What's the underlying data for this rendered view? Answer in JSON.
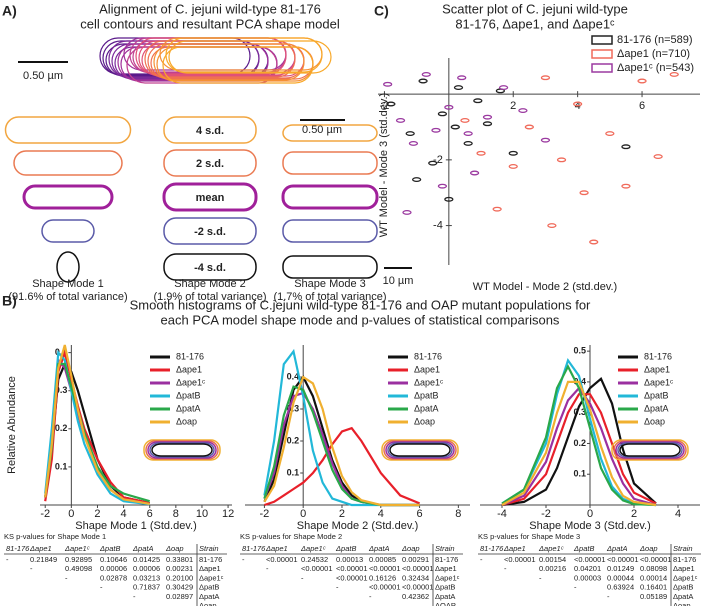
{
  "panel_labels": [
    "A)",
    "B)",
    "C)"
  ],
  "panel_a": {
    "title": [
      "Alignment of C. jejuni wild-type 81-176",
      "cell contours and resultant PCA shape model"
    ],
    "scale_bar": "0.50 µm",
    "rows": [
      "4 s.d.",
      "2 s.d.",
      "mean",
      "-2 s.d.",
      "-4 s.d."
    ],
    "scale_bar_mode3": "0.50 µm",
    "modes": [
      {
        "name": "Shape Mode 1",
        "variance": "(91.6% of total variance)"
      },
      {
        "name": "Shape Mode 2",
        "variance": "(1.9% of total variance)"
      },
      {
        "name": "Shape Mode 3",
        "variance": "(1.7% of total variance)"
      }
    ]
  },
  "panel_b_title": [
    "Smooth histograms of C.jejuni wild-type 81-176 and OAP mutant populations for",
    "each PCA model shape mode and p-values of statistical comparisons"
  ],
  "chart_data": [
    {
      "type": "scatter",
      "title": [
        "Scatter plot of C. jejuni wild-type",
        "81-176, Δape1, and Δape1ᶜ"
      ],
      "x_label": "WT Model - Mode 2 (std.dev.)",
      "y_label": "WT Model - Mode 3 (std.dev.)",
      "scale_bar": "10 µm",
      "legend": "upper right",
      "xlim": [
        -2.2,
        7.8
      ],
      "ylim": [
        -5.2,
        1.1
      ],
      "xticks": [
        -2,
        2,
        4,
        6
      ],
      "yticks": [
        -2,
        -4
      ],
      "series": [
        {
          "name": "81-176 (n=589)",
          "color": "#222222",
          "x": [
            -1.8,
            -1.2,
            -0.8,
            -0.5,
            -0.2,
            0,
            0.3,
            0.6,
            0.9,
            1.2,
            1.6,
            2.0,
            -1.0,
            0.2,
            5.5
          ],
          "y": [
            -0.3,
            -1.2,
            0.4,
            -2.1,
            -0.6,
            -3.2,
            0.2,
            -1.5,
            -0.2,
            -0.9,
            0.1,
            -1.8,
            -2.6,
            -1.0,
            -1.6
          ]
        },
        {
          "name": "Δape1 (n=710)",
          "color": "#f06a5a",
          "x": [
            0.5,
            1.5,
            2.5,
            3,
            3.5,
            4,
            4.5,
            5,
            5.5,
            6,
            6.5,
            2,
            3.2,
            4.2,
            1,
            7
          ],
          "y": [
            -0.8,
            -3.5,
            -1,
            0.5,
            -2,
            -0.3,
            -4.5,
            -1.2,
            -2.8,
            0.4,
            -1.9,
            -2.2,
            -4,
            -3,
            -1.8,
            0.6
          ]
        },
        {
          "name": "Δape1ᶜ (n=543)",
          "color": "#9b3aa0",
          "x": [
            -1.9,
            -1.5,
            -1.1,
            -0.7,
            -0.4,
            0,
            0.4,
            0.8,
            1.2,
            1.7,
            -0.2,
            0.6,
            2.3,
            -1.3,
            3.0
          ],
          "y": [
            0.3,
            -0.8,
            -1.5,
            0.6,
            -1.1,
            -0.4,
            0.5,
            -2.4,
            -0.7,
            0.2,
            -2.8,
            -1.2,
            -0.5,
            -3.6,
            -1.4
          ]
        }
      ]
    },
    {
      "type": "line",
      "x_label": "Shape Mode 1 (Std.dev.)",
      "y_label": "Relative Abundance",
      "xlim": [
        -2.4,
        12.3
      ],
      "ylim": [
        0,
        0.42
      ],
      "xticks": [
        -2,
        0,
        2,
        4,
        6,
        8,
        10,
        12
      ],
      "yticks": [
        0.1,
        0.2,
        0.3,
        0.4
      ],
      "x": [
        -2,
        -1.5,
        -1,
        -0.5,
        0,
        0.5,
        1,
        2,
        3,
        4,
        6
      ],
      "series": [
        {
          "name": "81-176",
          "color": "#111111",
          "values": [
            0.02,
            0.15,
            0.33,
            0.37,
            0.35,
            0.3,
            0.24,
            0.12,
            0.05,
            0.02,
            0.005
          ]
        },
        {
          "name": "Δape1",
          "color": "#e8202a",
          "values": [
            0.01,
            0.12,
            0.35,
            0.4,
            0.33,
            0.26,
            0.2,
            0.12,
            0.06,
            0.02,
            0.005
          ]
        },
        {
          "name": "Δape1ᶜ",
          "color": "#9b30a0",
          "values": [
            0.02,
            0.18,
            0.38,
            0.36,
            0.3,
            0.24,
            0.18,
            0.1,
            0.04,
            0.015,
            0.003
          ]
        },
        {
          "name": "ΔpatB",
          "color": "#22b8d8",
          "values": [
            0.03,
            0.2,
            0.4,
            0.38,
            0.3,
            0.22,
            0.16,
            0.08,
            0.03,
            0.01,
            0.002
          ]
        },
        {
          "name": "ΔpatA",
          "color": "#2aa84a",
          "values": [
            0.02,
            0.15,
            0.37,
            0.37,
            0.31,
            0.25,
            0.19,
            0.1,
            0.05,
            0.03,
            0.01
          ]
        },
        {
          "name": "Δoap",
          "color": "#f0b030",
          "values": [
            0.02,
            0.16,
            0.36,
            0.42,
            0.34,
            0.25,
            0.18,
            0.09,
            0.04,
            0.015,
            0.003
          ]
        }
      ]
    },
    {
      "type": "line",
      "x_label": "Shape Mode 2 (Std.dev.)",
      "xlim": [
        -3,
        8.6
      ],
      "ylim": [
        0,
        0.5
      ],
      "xticks": [
        -2,
        0,
        2,
        4,
        6,
        8
      ],
      "yticks": [
        0.1,
        0.2,
        0.3,
        0.4
      ],
      "x": [
        -2,
        -1.5,
        -1,
        -0.5,
        0,
        0.5,
        1,
        1.5,
        2,
        2.5,
        3,
        4,
        5,
        6
      ],
      "series": [
        {
          "name": "81-176",
          "color": "#111111",
          "values": [
            0.01,
            0.08,
            0.22,
            0.36,
            0.4,
            0.34,
            0.24,
            0.14,
            0.07,
            0.03,
            0.01,
            0,
            0,
            0
          ]
        },
        {
          "name": "Δape1",
          "color": "#e8202a",
          "values": [
            0,
            0.01,
            0.03,
            0.05,
            0.07,
            0.1,
            0.14,
            0.19,
            0.23,
            0.24,
            0.2,
            0.1,
            0.03,
            0.005
          ]
        },
        {
          "name": "Δape1ᶜ",
          "color": "#9b30a0",
          "values": [
            0.02,
            0.1,
            0.25,
            0.34,
            0.35,
            0.3,
            0.22,
            0.13,
            0.06,
            0.02,
            0.01,
            0,
            0,
            0
          ]
        },
        {
          "name": "ΔpatB",
          "color": "#22b8d8",
          "values": [
            0.03,
            0.2,
            0.44,
            0.48,
            0.34,
            0.17,
            0.07,
            0.02,
            0.01,
            0,
            0,
            0,
            0,
            0
          ]
        },
        {
          "name": "ΔpatA",
          "color": "#2aa84a",
          "values": [
            0.02,
            0.12,
            0.28,
            0.37,
            0.36,
            0.29,
            0.2,
            0.11,
            0.05,
            0.02,
            0.01,
            0,
            0,
            0
          ]
        },
        {
          "name": "Δoap",
          "color": "#f0b030",
          "values": [
            0.01,
            0.06,
            0.18,
            0.32,
            0.4,
            0.38,
            0.3,
            0.18,
            0.09,
            0.04,
            0.015,
            0,
            0,
            0
          ]
        }
      ]
    },
    {
      "type": "line",
      "x_label": "Shape Mode 3 (Std.dev.)",
      "xlim": [
        -5,
        5
      ],
      "ylim": [
        0,
        0.52
      ],
      "xticks": [
        -4,
        -2,
        0,
        2,
        4
      ],
      "yticks": [
        0.1,
        0.2,
        0.3,
        0.4,
        0.5
      ],
      "x": [
        -4,
        -3,
        -2,
        -1.5,
        -1,
        -0.5,
        0,
        0.5,
        1,
        1.5,
        2,
        3
      ],
      "series": [
        {
          "name": "81-176",
          "color": "#111111",
          "values": [
            0,
            0.01,
            0.05,
            0.12,
            0.22,
            0.32,
            0.38,
            0.41,
            0.33,
            0.18,
            0.07,
            0.005
          ]
        },
        {
          "name": "Δape1",
          "color": "#e8202a",
          "values": [
            0,
            0.02,
            0.1,
            0.2,
            0.3,
            0.36,
            0.36,
            0.3,
            0.2,
            0.1,
            0.04,
            0.005
          ]
        },
        {
          "name": "Δape1ᶜ",
          "color": "#9b30a0",
          "values": [
            0,
            0.03,
            0.14,
            0.25,
            0.34,
            0.38,
            0.33,
            0.25,
            0.15,
            0.07,
            0.02,
            0
          ]
        },
        {
          "name": "ΔpatB",
          "color": "#22b8d8",
          "values": [
            0.005,
            0.05,
            0.2,
            0.36,
            0.47,
            0.42,
            0.28,
            0.15,
            0.06,
            0.02,
            0.005,
            0
          ]
        },
        {
          "name": "ΔpatA",
          "color": "#2aa84a",
          "values": [
            0.005,
            0.05,
            0.22,
            0.38,
            0.45,
            0.38,
            0.25,
            0.12,
            0.05,
            0.015,
            0.003,
            0
          ]
        },
        {
          "name": "Δoap",
          "color": "#f0b030",
          "values": [
            0,
            0.04,
            0.17,
            0.3,
            0.4,
            0.4,
            0.31,
            0.19,
            0.09,
            0.03,
            0.01,
            0
          ]
        }
      ]
    }
  ],
  "tables": [
    {
      "title": "KS p-values for Shape Mode 1",
      "header": [
        "81-176",
        "Δape1",
        "Δape1ᶜ",
        "ΔpatB",
        "ΔpatA",
        "Δoap",
        "Strain"
      ],
      "rows": [
        [
          "-",
          "0.21849",
          "0.92895",
          "0.10646",
          "0.01425",
          "0.33801",
          "81-176"
        ],
        [
          null,
          "-",
          "0.49098",
          "0.00006",
          "0.00006",
          "0.00231",
          "Δape1"
        ],
        [
          null,
          null,
          "-",
          "0.02878",
          "0.03213",
          "0.20100",
          "Δape1ᶜ"
        ],
        [
          null,
          null,
          null,
          "-",
          "0.71837",
          "0.30429",
          "ΔpatB"
        ],
        [
          null,
          null,
          null,
          null,
          "-",
          "0.02897",
          "ΔpatA"
        ],
        [
          null,
          null,
          null,
          null,
          null,
          null,
          "Δoap"
        ]
      ]
    },
    {
      "title": "KS p-values for Shape Mode 2",
      "header": [
        "81-176",
        "Δape1",
        "Δape1ᶜ",
        "ΔpatB",
        "ΔpatA",
        "Δoap",
        "Strain"
      ],
      "rows": [
        [
          "-",
          "<0.00001",
          "0.24532",
          "0.00013",
          "0.00085",
          "0.00291",
          "81-176"
        ],
        [
          null,
          "-",
          "<0.00001",
          "<0.00001",
          "<0.00001",
          "<0.00001",
          "Δape1"
        ],
        [
          null,
          null,
          "-",
          "<0.00001",
          "0.16126",
          "0.32434",
          "Δape1ᶜ"
        ],
        [
          null,
          null,
          null,
          "-",
          "<0.00001",
          "<0.00001",
          "ΔpatB"
        ],
        [
          null,
          null,
          null,
          null,
          "-",
          "0.42362",
          "ΔpatA"
        ],
        [
          null,
          null,
          null,
          null,
          null,
          null,
          "ΔOAP"
        ]
      ]
    },
    {
      "title": "KS p-values for Shape Mode 3",
      "header": [
        "81-176",
        "Δape1",
        "Δape1ᶜ",
        "ΔpatB",
        "ΔpatA",
        "Δoap",
        "Strain"
      ],
      "rows": [
        [
          "-",
          "<0.00001",
          "0.00154",
          "<0.00001",
          "<0.00001",
          "<0.00001",
          "81-176"
        ],
        [
          null,
          "-",
          "0.00216",
          "0.04201",
          "0.01249",
          "0.08098",
          "Δape1"
        ],
        [
          null,
          null,
          "-",
          "0.00003",
          "0.00044",
          "0.00014",
          "Δape1ᶜ"
        ],
        [
          null,
          null,
          null,
          "-",
          "0.63924",
          "0.16401",
          "ΔpatB"
        ],
        [
          null,
          null,
          null,
          null,
          "-",
          "0.05189",
          "ΔpatA"
        ],
        [
          null,
          null,
          null,
          null,
          null,
          null,
          "Δoap"
        ]
      ]
    }
  ]
}
